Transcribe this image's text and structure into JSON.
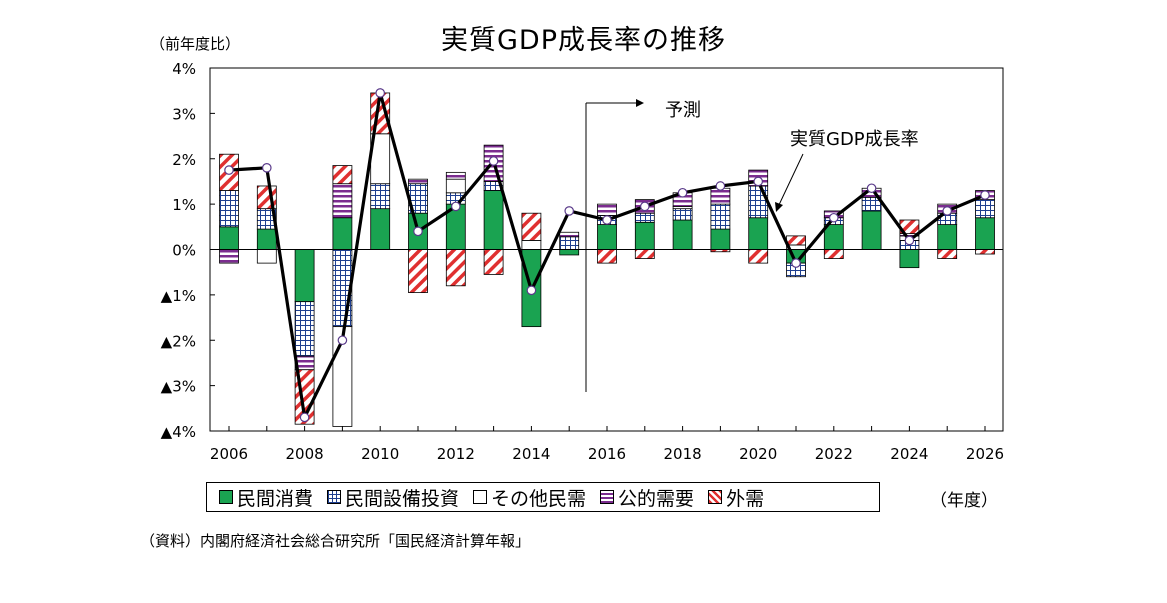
{
  "title": "実質GDP成長率の推移",
  "unit_label": "（前年度比）",
  "year_unit": "（年度）",
  "source": "（資料）内閣府経済社会総合研究所「国民経済計算年報」",
  "forecast_label": "予測",
  "gdp_annotation": "実質GDP成長率",
  "chart_data": {
    "type": "bar",
    "stacked": true,
    "categories": [
      "2006",
      "2007",
      "2008",
      "2009",
      "2010",
      "2011",
      "2012",
      "2013",
      "2014",
      "2015",
      "2016",
      "2017",
      "2018",
      "2019",
      "2020",
      "2021",
      "2022",
      "2023",
      "2024",
      "2025",
      "2026"
    ],
    "x_tick_labels": [
      "2006",
      "2008",
      "2010",
      "2012",
      "2014",
      "2016",
      "2018",
      "2020",
      "2022",
      "2024",
      "2026"
    ],
    "y_tick_labels": [
      "4%",
      "3%",
      "2%",
      "1%",
      "0%",
      "▲1%",
      "▲2%",
      "▲3%",
      "▲4%"
    ],
    "ylim": [
      -4,
      4
    ],
    "forecast_start": "2015",
    "grid": false,
    "legend_position": "bottom",
    "series": [
      {
        "name": "民間消費",
        "style": "green",
        "color": "#1aa351",
        "values": [
          0.5,
          0.45,
          -1.15,
          0.7,
          0.9,
          0.8,
          1.0,
          1.3,
          -1.7,
          -0.12,
          0.55,
          0.6,
          0.65,
          0.45,
          0.7,
          -0.3,
          0.55,
          0.85,
          -0.4,
          0.55,
          0.7
        ]
      },
      {
        "name": "民間設備投資",
        "style": "grid",
        "color": "#1f3f8f",
        "values": [
          0.8,
          0.45,
          -1.2,
          -1.7,
          0.55,
          0.65,
          0.25,
          0.2,
          0.0,
          0.28,
          0.2,
          0.2,
          0.25,
          0.55,
          0.7,
          -0.3,
          0.15,
          0.3,
          0.2,
          0.25,
          0.4
        ]
      },
      {
        "name": "その他民需",
        "style": "white",
        "color": "#ffffff",
        "values": [
          0.0,
          -0.3,
          0.0,
          -2.2,
          1.1,
          0.0,
          0.3,
          0.0,
          0.2,
          0.0,
          0.0,
          0.0,
          0.05,
          0.0,
          0.0,
          0.1,
          0.0,
          0.0,
          0.1,
          0.0,
          0.0
        ]
      },
      {
        "name": "公的需要",
        "style": "purple",
        "color": "#7b2c8f",
        "values": [
          -0.3,
          0.0,
          -0.3,
          0.75,
          0.0,
          0.1,
          0.15,
          0.8,
          0.0,
          0.1,
          0.25,
          0.3,
          0.3,
          0.35,
          0.35,
          0.0,
          0.15,
          0.2,
          0.05,
          0.2,
          0.2
        ]
      },
      {
        "name": "外需",
        "style": "red",
        "color": "#e03030",
        "values": [
          0.8,
          0.5,
          -1.2,
          0.4,
          0.9,
          -0.95,
          -0.8,
          -0.55,
          0.6,
          0.0,
          -0.3,
          -0.2,
          0.0,
          -0.05,
          -0.3,
          0.2,
          -0.2,
          0.0,
          0.3,
          -0.2,
          -0.1
        ]
      },
      {
        "name": "実質GDP成長率",
        "type": "line",
        "color": "#000000",
        "values": [
          1.75,
          1.8,
          -3.7,
          -2.0,
          3.45,
          0.4,
          0.95,
          1.95,
          -0.9,
          0.85,
          0.65,
          0.95,
          1.25,
          1.4,
          1.5,
          -0.3,
          0.7,
          1.35,
          0.2,
          0.85,
          1.2
        ]
      }
    ]
  }
}
